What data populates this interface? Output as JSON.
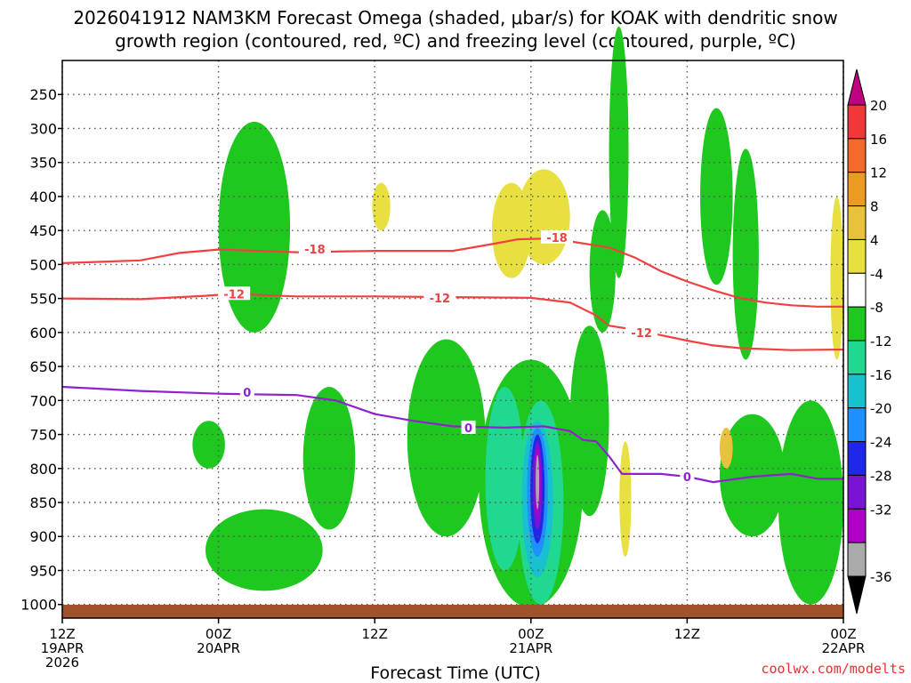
{
  "chart_data": {
    "type": "heatmap",
    "title_line1": "2026041912 NAM3KM Forecast Omega (shaded, μbar/s) for KOAK with dendritic snow",
    "title_line2": "growth region (contoured, red, ºC) and freezing level (contoured, purple, ºC)",
    "xlabel": "Forecast Time (UTC)",
    "credit": "coolwx.com/modelts",
    "x_range_hours": [
      0,
      60
    ],
    "x_ticks": [
      {
        "hour": 0,
        "lines": [
          "12Z",
          "19APR",
          "2026"
        ]
      },
      {
        "hour": 12,
        "lines": [
          "00Z",
          "20APR"
        ]
      },
      {
        "hour": 24,
        "lines": [
          "12Z"
        ]
      },
      {
        "hour": 36,
        "lines": [
          "00Z",
          "21APR"
        ]
      },
      {
        "hour": 48,
        "lines": [
          "12Z"
        ]
      },
      {
        "hour": 60,
        "lines": [
          "00Z",
          "22APR"
        ]
      }
    ],
    "y_range_hPa": [
      200,
      1020
    ],
    "y_ticks": [
      {
        "p": 250,
        "label": "250"
      },
      {
        "p": 300,
        "label": "300"
      },
      {
        "p": 350,
        "label": "350"
      },
      {
        "p": 400,
        "label": "400"
      },
      {
        "p": 450,
        "label": "450"
      },
      {
        "p": 500,
        "label": "500"
      },
      {
        "p": 550,
        "label": "550"
      },
      {
        "p": 600,
        "label": "600"
      },
      {
        "p": 650,
        "label": "650"
      },
      {
        "p": 700,
        "label": "700"
      },
      {
        "p": 750,
        "label": "750"
      },
      {
        "p": 800,
        "label": "800"
      },
      {
        "p": 850,
        "label": "850"
      },
      {
        "p": 900,
        "label": "900"
      },
      {
        "p": 950,
        "label": "950"
      },
      {
        "p": 1000,
        "label": "1000"
      }
    ],
    "colorbar": {
      "bins": [
        {
          "color": "#c00080",
          "label": ""
        },
        {
          "color": "#f03838",
          "label": "20"
        },
        {
          "color": "#f46a2a",
          "label": "16"
        },
        {
          "color": "#ec9a22",
          "label": "12"
        },
        {
          "color": "#e8c23a",
          "label": "8"
        },
        {
          "color": "#e8e040",
          "label": "4"
        },
        {
          "color": "#ffffff",
          "label": "-4"
        },
        {
          "color": "#1ec81e",
          "label": "-8"
        },
        {
          "color": "#20d890",
          "label": "-12"
        },
        {
          "color": "#18c0d0",
          "label": "-16"
        },
        {
          "color": "#1e90ff",
          "label": "-20"
        },
        {
          "color": "#1e28e6",
          "label": "-24"
        },
        {
          "color": "#7a14d2",
          "label": "-28"
        },
        {
          "color": "#b000c8",
          "label": "-32"
        },
        {
          "color": "#aaaaaa",
          "label": "-36"
        },
        {
          "color": "#000000",
          "label": ""
        }
      ]
    },
    "omega_features": [
      {
        "level": -8,
        "color": "#1ec81e",
        "h0": 12.0,
        "h1": 17.5,
        "p0": 290,
        "p1": 600,
        "note": "-8"
      },
      {
        "level": -8,
        "color": "#1ec81e",
        "h0": 10.0,
        "h1": 12.5,
        "p0": 730,
        "p1": 800,
        "note": ""
      },
      {
        "level": -8,
        "color": "#1ec81e",
        "h0": 11.0,
        "h1": 20.0,
        "p0": 860,
        "p1": 980,
        "note": ""
      },
      {
        "level": -8,
        "color": "#1ec81e",
        "h0": 18.5,
        "h1": 22.5,
        "p0": 680,
        "p1": 890,
        "note": ""
      },
      {
        "level": -8,
        "color": "#1ec81e",
        "h0": 26.5,
        "h1": 32.5,
        "p0": 610,
        "p1": 900,
        "note": ""
      },
      {
        "level": -8,
        "color": "#1ec81e",
        "h0": 32.0,
        "h1": 40.0,
        "p0": 640,
        "p1": 1005,
        "note": ""
      },
      {
        "level": -8,
        "color": "#1ec81e",
        "h0": 39.0,
        "h1": 42.0,
        "p0": 590,
        "p1": 870,
        "note": ""
      },
      {
        "level": -8,
        "color": "#1ec81e",
        "h0": 40.5,
        "h1": 42.5,
        "p0": 420,
        "p1": 600,
        "note": ""
      },
      {
        "level": -8,
        "color": "#1ec81e",
        "h0": 42.0,
        "h1": 43.5,
        "p0": 150,
        "p1": 520,
        "note": ""
      },
      {
        "level": -8,
        "color": "#1ec81e",
        "h0": 49.0,
        "h1": 51.5,
        "p0": 270,
        "p1": 530,
        "note": ""
      },
      {
        "level": -8,
        "color": "#1ec81e",
        "h0": 51.5,
        "h1": 53.5,
        "p0": 330,
        "p1": 640,
        "note": ""
      },
      {
        "level": -8,
        "color": "#1ec81e",
        "h0": 50.5,
        "h1": 55.5,
        "p0": 720,
        "p1": 900,
        "note": ""
      },
      {
        "level": -8,
        "color": "#1ec81e",
        "h0": 55.0,
        "h1": 60.0,
        "p0": 700,
        "p1": 1000,
        "note": ""
      },
      {
        "level": -12,
        "color": "#20d890",
        "h0": 32.5,
        "h1": 35.5,
        "p0": 680,
        "p1": 950,
        "note": ""
      },
      {
        "level": -12,
        "color": "#20d890",
        "h0": 35.0,
        "h1": 38.5,
        "p0": 700,
        "p1": 1000,
        "note": ""
      },
      {
        "level": -16,
        "color": "#18c0d0",
        "h0": 35.3,
        "h1": 37.7,
        "p0": 730,
        "p1": 960,
        "note": ""
      },
      {
        "level": -20,
        "color": "#1e90ff",
        "h0": 35.7,
        "h1": 37.3,
        "p0": 740,
        "p1": 930,
        "note": ""
      },
      {
        "level": -24,
        "color": "#1e28e6",
        "h0": 35.95,
        "h1": 37.05,
        "p0": 750,
        "p1": 910,
        "note": ""
      },
      {
        "level": -28,
        "color": "#7a14d2",
        "h0": 36.15,
        "h1": 36.85,
        "p0": 760,
        "p1": 890,
        "note": ""
      },
      {
        "level": -32,
        "color": "#b000c8",
        "h0": 36.3,
        "h1": 36.7,
        "p0": 770,
        "p1": 870,
        "note": ""
      },
      {
        "level": -36,
        "color": "#aaaaaa",
        "h0": 36.4,
        "h1": 36.6,
        "p0": 780,
        "p1": 860,
        "note": ""
      },
      {
        "level": 4,
        "color": "#e8e040",
        "h0": 23.8,
        "h1": 25.2,
        "p0": 380,
        "p1": 450,
        "note": ""
      },
      {
        "level": 4,
        "color": "#e8e040",
        "h0": 33.0,
        "h1": 36.0,
        "p0": 380,
        "p1": 520,
        "note": ""
      },
      {
        "level": 4,
        "color": "#e8e040",
        "h0": 35.0,
        "h1": 39.0,
        "p0": 360,
        "p1": 500,
        "note": ""
      },
      {
        "level": 4,
        "color": "#e8e040",
        "h0": 42.8,
        "h1": 43.7,
        "p0": 760,
        "p1": 930,
        "note": ""
      },
      {
        "level": 4,
        "color": "#e8e040",
        "h0": 59.0,
        "h1": 60.0,
        "p0": 400,
        "p1": 640,
        "note": ""
      },
      {
        "level": 8,
        "color": "#e8c23a",
        "h0": 50.5,
        "h1": 51.5,
        "p0": 740,
        "p1": 800,
        "note": ""
      }
    ],
    "contours": [
      {
        "name": "-18",
        "color": "#f04040",
        "label": "-18",
        "label_hour": 19.5,
        "label_p": 478,
        "points": [
          [
            0,
            498
          ],
          [
            6,
            494
          ],
          [
            9,
            483
          ],
          [
            12,
            478
          ],
          [
            18,
            482
          ],
          [
            24,
            480
          ],
          [
            30,
            480
          ],
          [
            33,
            470
          ],
          [
            35,
            463
          ],
          [
            37,
            462
          ],
          [
            39,
            466
          ],
          [
            42,
            475
          ],
          [
            44,
            490
          ],
          [
            46,
            510
          ],
          [
            48,
            525
          ],
          [
            50,
            538
          ],
          [
            52,
            549
          ],
          [
            54,
            556
          ],
          [
            56,
            560
          ],
          [
            58,
            562
          ],
          [
            60,
            562
          ]
        ]
      },
      {
        "name": "-12",
        "color": "#f04040",
        "label": "-12",
        "label_hour": 13,
        "label_p": 545,
        "points": [
          [
            0,
            550
          ],
          [
            6,
            551
          ],
          [
            11,
            546
          ],
          [
            13,
            543
          ],
          [
            18,
            547
          ],
          [
            24,
            547
          ],
          [
            30,
            548
          ],
          [
            36,
            549
          ],
          [
            39,
            556
          ],
          [
            41,
            575
          ],
          [
            42,
            590
          ],
          [
            44,
            596
          ],
          [
            46,
            604
          ],
          [
            48,
            612
          ],
          [
            50,
            619
          ],
          [
            52,
            623
          ],
          [
            56,
            626
          ],
          [
            60,
            625
          ]
        ]
      },
      {
        "name": "0",
        "color": "#9020d0",
        "label": "0",
        "label_hour": 14,
        "label_p": 690,
        "points": [
          [
            0,
            680
          ],
          [
            6,
            686
          ],
          [
            12,
            690
          ],
          [
            18,
            692
          ],
          [
            21,
            700
          ],
          [
            24,
            720
          ],
          [
            27,
            730
          ],
          [
            30,
            738
          ],
          [
            34,
            740
          ],
          [
            37,
            738
          ],
          [
            39,
            745
          ],
          [
            40,
            758
          ],
          [
            41,
            760
          ],
          [
            42,
            782
          ],
          [
            43,
            808
          ],
          [
            44,
            808
          ],
          [
            46,
            808
          ],
          [
            48,
            812
          ],
          [
            50,
            820
          ],
          [
            53,
            812
          ],
          [
            56,
            808
          ],
          [
            58,
            815
          ],
          [
            60,
            815
          ]
        ]
      }
    ],
    "contour_labels": [
      {
        "text": "-18",
        "hour": 19.4,
        "p": 477
      },
      {
        "text": "-18",
        "hour": 38.0,
        "p": 460
      },
      {
        "text": "-12",
        "hour": 13.2,
        "p": 543
      },
      {
        "text": "-12",
        "hour": 29.0,
        "p": 549
      },
      {
        "text": "-12",
        "hour": 44.5,
        "p": 600
      },
      {
        "text": "0",
        "hour": 14.2,
        "p": 688
      },
      {
        "text": "0",
        "hour": 31.2,
        "p": 740
      },
      {
        "text": "0",
        "hour": 48.0,
        "p": 812
      }
    ]
  }
}
